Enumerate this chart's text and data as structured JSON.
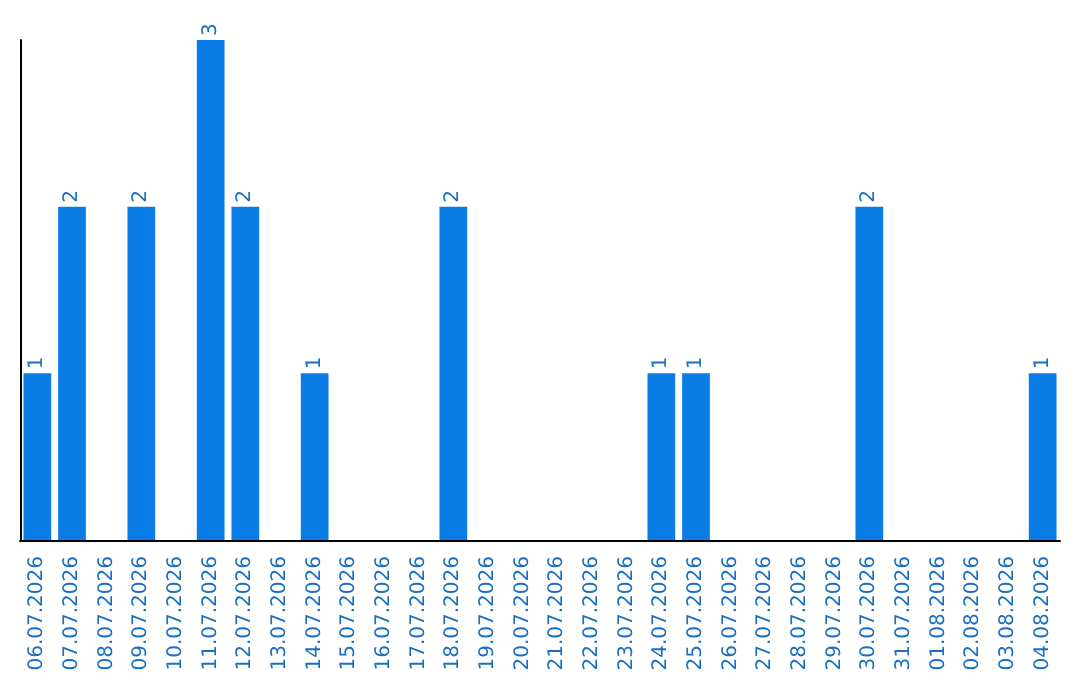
{
  "chart_data": {
    "type": "bar",
    "categories": [
      "06.07.2026",
      "07.07.2026",
      "08.07.2026",
      "09.07.2026",
      "10.07.2026",
      "11.07.2026",
      "12.07.2026",
      "13.07.2026",
      "14.07.2026",
      "15.07.2026",
      "16.07.2026",
      "17.07.2026",
      "18.07.2026",
      "19.07.2026",
      "20.07.2026",
      "21.07.2026",
      "22.07.2026",
      "23.07.2026",
      "24.07.2026",
      "25.07.2026",
      "26.07.2026",
      "27.07.2026",
      "28.07.2026",
      "29.07.2026",
      "30.07.2026",
      "31.07.2026",
      "01.08.2026",
      "02.08.2026",
      "03.08.2026",
      "04.08.2026"
    ],
    "values": [
      1,
      2,
      0,
      2,
      0,
      3,
      2,
      0,
      1,
      0,
      0,
      0,
      2,
      0,
      0,
      0,
      0,
      0,
      1,
      1,
      0,
      0,
      0,
      0,
      2,
      0,
      0,
      0,
      0,
      1
    ],
    "value_labels": [
      "1",
      "2",
      null,
      "2",
      null,
      "3",
      "2",
      null,
      "1",
      null,
      null,
      null,
      "2",
      null,
      null,
      null,
      null,
      null,
      "1",
      "1",
      null,
      null,
      null,
      null,
      "2",
      null,
      null,
      null,
      null,
      "1"
    ],
    "color": "#0a7ce6",
    "tick_labels": "x"
  }
}
